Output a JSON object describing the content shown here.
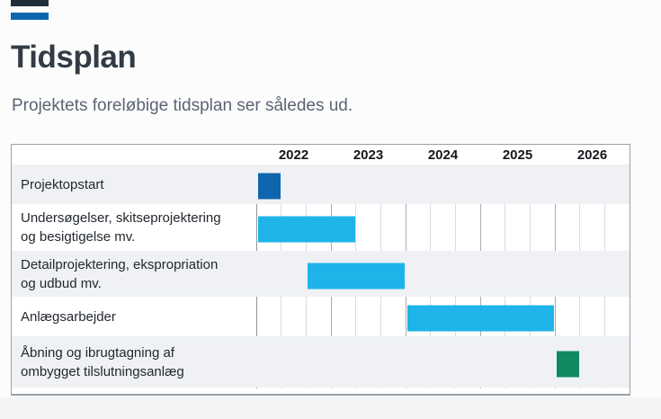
{
  "page": {
    "title": "Tidsplan",
    "subtitle": "Projektets foreløbige tidsplan ser således ud.",
    "accent_color": "#0b66ae",
    "top_bar_color": "#1f2c3a"
  },
  "chart_data": {
    "type": "gantt",
    "title": "Tidsplan",
    "x_axis": {
      "tick_labels": [
        "2022",
        "2023",
        "2024",
        "2025",
        "2026"
      ],
      "range": [
        2022,
        2027
      ],
      "subdivisions_per_year": 3,
      "grid": true
    },
    "rows": [
      {
        "label": "Projektopstart",
        "start": 2022.0,
        "end": 2022.333,
        "color": "#0e67ae",
        "color_name": "dark-blue"
      },
      {
        "label": "Undersøgelser, skitseprojektering og besigtigelse mv.",
        "start": 2022.0,
        "end": 2023.333,
        "color": "#1eb4e9",
        "color_name": "cyan"
      },
      {
        "label": "Detailprojektering, ekspropriation og udbud mv.",
        "start": 2022.667,
        "end": 2024.0,
        "color": "#1eb4e9",
        "color_name": "cyan"
      },
      {
        "label": "Anlægsarbejder",
        "start": 2024.0,
        "end": 2026.0,
        "color": "#1eb4e9",
        "color_name": "cyan"
      },
      {
        "label": "Åbning og ibrugtagning af ombygget tilslutningsanlæg",
        "start": 2026.0,
        "end": 2026.333,
        "color": "#0e8a5e",
        "color_name": "green"
      }
    ]
  }
}
